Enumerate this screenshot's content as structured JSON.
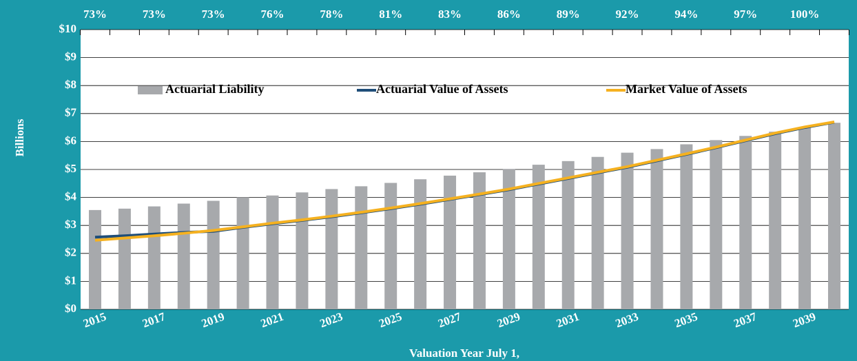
{
  "chart_data": {
    "type": "bar_line",
    "y_axis_label": "Billions",
    "x_axis_label": "Valuation Year July 1,",
    "top_labels": [
      "73%",
      "73%",
      "73%",
      "76%",
      "78%",
      "81%",
      "83%",
      "86%",
      "89%",
      "92%",
      "94%",
      "97%",
      "100%"
    ],
    "categories": [
      "2015",
      null,
      "2017",
      null,
      "2019",
      null,
      "2021",
      null,
      "2023",
      null,
      "2025",
      null,
      "2027",
      null,
      "2029",
      null,
      "2031",
      null,
      "2033",
      null,
      "2035",
      null,
      "2037",
      null,
      "2039",
      null
    ],
    "series": [
      {
        "name": "Actuarial Liability",
        "kind": "bar",
        "color": "#a7a9ac",
        "values": [
          3.55,
          3.6,
          3.68,
          3.78,
          3.88,
          4.0,
          4.07,
          4.18,
          4.3,
          4.4,
          4.52,
          4.65,
          4.78,
          4.9,
          5.02,
          5.17,
          5.3,
          5.45,
          5.6,
          5.73,
          5.9,
          6.05,
          6.2,
          6.35,
          6.5,
          6.67
        ]
      },
      {
        "name": "Actuarial Value of Assets",
        "kind": "line",
        "color": "#1f4e79",
        "values": [
          2.58,
          2.63,
          2.69,
          2.75,
          2.79,
          2.93,
          3.06,
          3.18,
          3.31,
          3.45,
          3.6,
          3.76,
          3.93,
          4.1,
          4.28,
          4.48,
          4.68,
          4.88,
          5.08,
          5.31,
          5.54,
          5.78,
          6.03,
          6.28,
          6.5,
          6.69
        ]
      },
      {
        "name": "Market Value of Assets",
        "kind": "line",
        "color": "#f5b120",
        "values": [
          2.47,
          2.55,
          2.63,
          2.72,
          2.82,
          2.95,
          3.08,
          3.2,
          3.33,
          3.47,
          3.62,
          3.78,
          3.95,
          4.12,
          4.3,
          4.5,
          4.7,
          4.9,
          5.1,
          5.33,
          5.56,
          5.8,
          6.05,
          6.3,
          6.52,
          6.7
        ]
      }
    ],
    "ylim": [
      0,
      10
    ],
    "yticks": [
      {
        "value": 0,
        "label": "$0"
      },
      {
        "value": 1,
        "label": "$1"
      },
      {
        "value": 2,
        "label": "$2"
      },
      {
        "value": 3,
        "label": "$3"
      },
      {
        "value": 4,
        "label": "$4"
      },
      {
        "value": 5,
        "label": "$5"
      },
      {
        "value": 6,
        "label": "$6"
      },
      {
        "value": 7,
        "label": "$7"
      },
      {
        "value": 8,
        "label": "$8"
      },
      {
        "value": 9,
        "label": "$9"
      },
      {
        "value": 10,
        "label": "$10"
      }
    ],
    "grid": true
  }
}
